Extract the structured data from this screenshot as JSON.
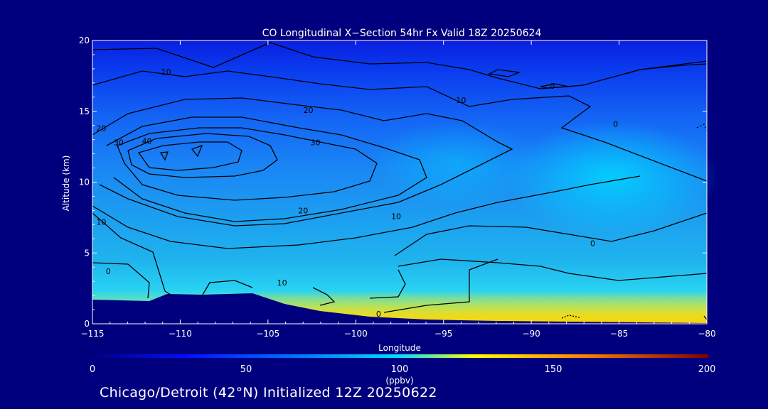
{
  "chart_data": {
    "type": "heatmap",
    "title": "CO Longitudinal X−Section 54hr  Fx Valid 18Z 20250624",
    "xlabel": "Longitude",
    "ylabel": "Altitude (km)",
    "xlim": [
      -115,
      -80
    ],
    "ylim": [
      0,
      20
    ],
    "x_ticks": [
      -115,
      -110,
      -105,
      -100,
      -95,
      -90,
      -85,
      -80
    ],
    "x_tick_labels": [
      "−115",
      "−110",
      "−105",
      "−100",
      "−95",
      "−90",
      "−85",
      "−80"
    ],
    "y_ticks": [
      0,
      5,
      10,
      15,
      20
    ],
    "y_tick_labels": [
      "0",
      "5",
      "10",
      "15",
      "20"
    ],
    "colorbar": {
      "label": "(ppbv)",
      "range": [
        0,
        200
      ],
      "ticks": [
        0,
        50,
        100,
        150,
        200
      ],
      "tick_labels": [
        "0",
        "50",
        "100",
        "150",
        "200"
      ]
    },
    "contour_labels": [
      {
        "text": "10",
        "lon": -110.8,
        "alt": 17.8
      },
      {
        "text": "20",
        "lon": -114.5,
        "alt": 13.8
      },
      {
        "text": "30",
        "lon": -113.5,
        "alt": 12.8
      },
      {
        "text": "40",
        "lon": -111.9,
        "alt": 12.9
      },
      {
        "text": "20",
        "lon": -102.7,
        "alt": 15.1
      },
      {
        "text": "30",
        "lon": -102.3,
        "alt": 12.8
      },
      {
        "text": "20",
        "lon": -103.0,
        "alt": 8.0
      },
      {
        "text": "10",
        "lon": -94.0,
        "alt": 15.8
      },
      {
        "text": "10",
        "lon": -97.7,
        "alt": 7.6
      },
      {
        "text": "10",
        "lon": -114.5,
        "alt": 7.2
      },
      {
        "text": "0",
        "lon": -85.2,
        "alt": 14.1
      },
      {
        "text": "0",
        "lon": -88.8,
        "alt": 16.8
      },
      {
        "text": "0",
        "lon": -86.5,
        "alt": 5.7
      },
      {
        "text": "0",
        "lon": -114.1,
        "alt": 3.7
      },
      {
        "text": "10",
        "lon": -104.2,
        "alt": 2.9
      },
      {
        "text": "0",
        "lon": -98.7,
        "alt": 0.7
      }
    ],
    "colors": {
      "background": "#00007f",
      "low": "#0a2ee6",
      "mid": "#1e8fff",
      "high": "#00e0ff",
      "peak": "#ffe000"
    },
    "grid": false
  },
  "footer": "Chicago/Detroit (42°N) Initialized 12Z 20250622"
}
